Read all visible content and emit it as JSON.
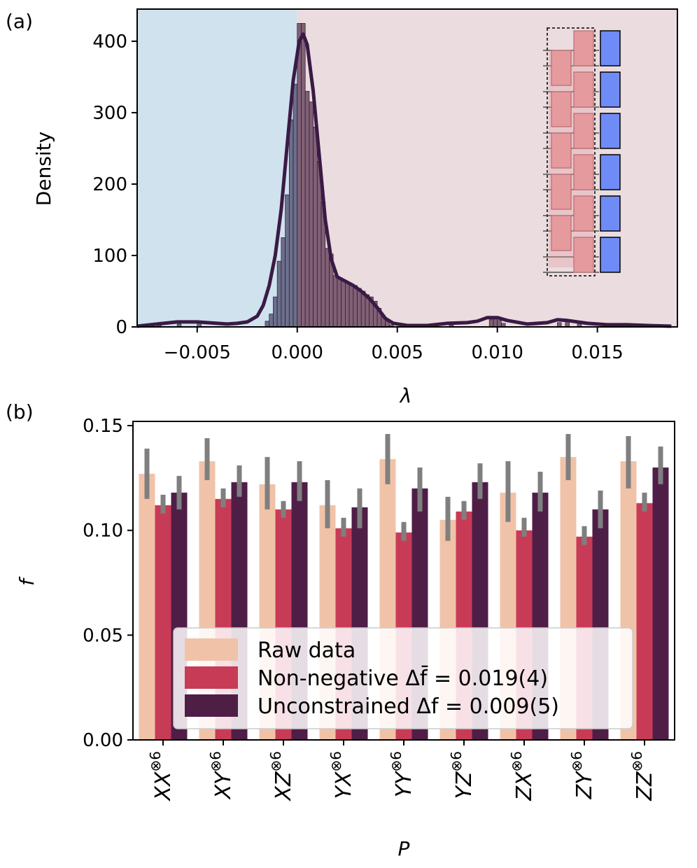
{
  "chart_data": [
    {
      "type": "histogram",
      "panel_label": "(a)",
      "xlabel": "λ",
      "ylabel": "Density",
      "xlim": [
        -0.008,
        0.019
      ],
      "ylim": [
        0,
        445
      ],
      "xticks": [
        -0.005,
        0.0,
        0.005,
        0.01,
        0.015
      ],
      "xtick_labels": [
        "−0.005",
        "0.000",
        "0.005",
        "0.010",
        "0.015"
      ],
      "yticks": [
        0,
        100,
        200,
        300,
        400
      ],
      "ytick_labels": [
        "0",
        "100",
        "200",
        "300",
        "400"
      ],
      "background_regions": [
        {
          "x0": -0.008,
          "x1": 0.0,
          "color": "#cfe2ee"
        },
        {
          "x0": 0.0,
          "x1": 0.019,
          "color": "#eadcdf"
        }
      ],
      "bin_width": 0.0002,
      "bins": [
        {
          "x": -0.0016,
          "y": 8
        },
        {
          "x": -0.0014,
          "y": 18
        },
        {
          "x": -0.0012,
          "y": 42
        },
        {
          "x": -0.001,
          "y": 92
        },
        {
          "x": -0.0008,
          "y": 125
        },
        {
          "x": -0.0006,
          "y": 185
        },
        {
          "x": -0.0004,
          "y": 290
        },
        {
          "x": -0.0002,
          "y": 340
        },
        {
          "x": 0.0,
          "y": 425
        },
        {
          "x": 0.0002,
          "y": 425
        },
        {
          "x": 0.0004,
          "y": 330
        },
        {
          "x": 0.0006,
          "y": 315
        },
        {
          "x": 0.0008,
          "y": 280
        },
        {
          "x": 0.001,
          "y": 232
        },
        {
          "x": 0.0012,
          "y": 175
        },
        {
          "x": 0.0014,
          "y": 110
        },
        {
          "x": 0.0016,
          "y": 102
        },
        {
          "x": 0.0018,
          "y": 72
        },
        {
          "x": 0.002,
          "y": 68
        },
        {
          "x": 0.0022,
          "y": 65
        },
        {
          "x": 0.0024,
          "y": 63
        },
        {
          "x": 0.0026,
          "y": 58
        },
        {
          "x": 0.0028,
          "y": 58
        },
        {
          "x": 0.003,
          "y": 54
        },
        {
          "x": 0.0032,
          "y": 50
        },
        {
          "x": 0.0034,
          "y": 45
        },
        {
          "x": 0.0036,
          "y": 42
        },
        {
          "x": 0.0038,
          "y": 36
        },
        {
          "x": 0.004,
          "y": 26
        },
        {
          "x": 0.0042,
          "y": 16
        },
        {
          "x": 0.0044,
          "y": 8
        },
        {
          "x": 0.0046,
          "y": 3
        },
        {
          "x": -0.007,
          "y": 2
        },
        {
          "x": -0.006,
          "y": 4
        },
        {
          "x": -0.005,
          "y": 5
        },
        {
          "x": 0.0076,
          "y": 3
        },
        {
          "x": 0.0096,
          "y": 10
        },
        {
          "x": 0.0098,
          "y": 12
        },
        {
          "x": 0.01,
          "y": 9
        },
        {
          "x": 0.0102,
          "y": 5
        },
        {
          "x": 0.013,
          "y": 6
        },
        {
          "x": 0.0134,
          "y": 8
        },
        {
          "x": 0.014,
          "y": 5
        },
        {
          "x": 0.0162,
          "y": 3
        }
      ],
      "kde": [
        [
          -0.008,
          1
        ],
        [
          -0.007,
          4
        ],
        [
          -0.006,
          7
        ],
        [
          -0.005,
          7
        ],
        [
          -0.0045,
          6
        ],
        [
          -0.004,
          5
        ],
        [
          -0.0035,
          4
        ],
        [
          -0.003,
          5
        ],
        [
          -0.0025,
          7
        ],
        [
          -0.002,
          15
        ],
        [
          -0.0017,
          30
        ],
        [
          -0.0014,
          58
        ],
        [
          -0.0011,
          100
        ],
        [
          -0.0008,
          165
        ],
        [
          -0.0005,
          255
        ],
        [
          -0.0002,
          345
        ],
        [
          0.0001,
          400
        ],
        [
          0.0003,
          410
        ],
        [
          0.0005,
          395
        ],
        [
          0.0008,
          330
        ],
        [
          0.0011,
          240
        ],
        [
          0.0014,
          150
        ],
        [
          0.0017,
          95
        ],
        [
          0.002,
          70
        ],
        [
          0.0024,
          64
        ],
        [
          0.0028,
          58
        ],
        [
          0.0032,
          50
        ],
        [
          0.0036,
          40
        ],
        [
          0.004,
          27
        ],
        [
          0.0044,
          12
        ],
        [
          0.0048,
          5
        ],
        [
          0.0055,
          2
        ],
        [
          0.0065,
          2
        ],
        [
          0.0075,
          5
        ],
        [
          0.0085,
          6
        ],
        [
          0.009,
          8
        ],
        [
          0.0095,
          13
        ],
        [
          0.01,
          13
        ],
        [
          0.0105,
          9
        ],
        [
          0.0115,
          4
        ],
        [
          0.0125,
          6
        ],
        [
          0.013,
          10
        ],
        [
          0.0135,
          9
        ],
        [
          0.0145,
          5
        ],
        [
          0.0155,
          3
        ],
        [
          0.0165,
          3
        ],
        [
          0.0175,
          2
        ],
        [
          0.0187,
          1
        ]
      ],
      "colors": {
        "bar_neg": "#5b5a7a",
        "bar_pos": "#6d4a63",
        "kde": "#3a1a45"
      },
      "inset": {
        "description_free": true,
        "rows": 6,
        "pink_color": "#e59a9e",
        "blue_color": "#6f8bf5"
      }
    },
    {
      "type": "bar",
      "panel_label": "(b)",
      "xlabel": "P",
      "ylabel": "f",
      "ylim": [
        0,
        0.152
      ],
      "yticks": [
        0,
        0.05,
        0.1,
        0.15
      ],
      "ytick_labels": [
        "0.00",
        "0.05",
        "0.10",
        "0.15"
      ],
      "categories": [
        {
          "base": "XX",
          "sup": "⊗6"
        },
        {
          "base": "XY",
          "sup": "⊗6"
        },
        {
          "base": "XZ",
          "sup": "⊗6"
        },
        {
          "base": "YX",
          "sup": "⊗6"
        },
        {
          "base": "YY",
          "sup": "⊗6"
        },
        {
          "base": "YZ",
          "sup": "⊗6"
        },
        {
          "base": "ZX",
          "sup": "⊗6"
        },
        {
          "base": "ZY",
          "sup": "⊗6"
        },
        {
          "base": "ZZ",
          "sup": "⊗6"
        }
      ],
      "series": [
        {
          "name": "Raw data",
          "color": "#f0c3a8",
          "values": [
            0.127,
            0.133,
            0.122,
            0.112,
            0.134,
            0.105,
            0.118,
            0.135,
            0.133
          ],
          "err_lo": [
            0.115,
            0.124,
            0.11,
            0.101,
            0.122,
            0.095,
            0.104,
            0.124,
            0.12
          ],
          "err_hi": [
            0.139,
            0.144,
            0.135,
            0.124,
            0.146,
            0.116,
            0.133,
            0.146,
            0.145
          ]
        },
        {
          "name": "Non-negative Δf̄ = 0.019(4)",
          "color": "#c83b56",
          "values": [
            0.112,
            0.115,
            0.11,
            0.101,
            0.099,
            0.109,
            0.1,
            0.097,
            0.113
          ],
          "err_lo": [
            0.108,
            0.111,
            0.106,
            0.097,
            0.095,
            0.105,
            0.097,
            0.093,
            0.109
          ],
          "err_hi": [
            0.117,
            0.12,
            0.114,
            0.106,
            0.104,
            0.114,
            0.106,
            0.102,
            0.118
          ]
        },
        {
          "name": "Unconstrained Δf = 0.009(5)",
          "color": "#4f1e47",
          "values": [
            0.118,
            0.123,
            0.123,
            0.111,
            0.12,
            0.123,
            0.118,
            0.11,
            0.13
          ],
          "err_lo": [
            0.11,
            0.116,
            0.114,
            0.101,
            0.109,
            0.115,
            0.109,
            0.101,
            0.122
          ],
          "err_hi": [
            0.126,
            0.131,
            0.133,
            0.12,
            0.13,
            0.132,
            0.128,
            0.119,
            0.14
          ]
        }
      ],
      "legend": {
        "position": "lower-center",
        "entries": [
          "Raw data",
          "Non-negative Δf̄ = 0.019(4)",
          "Unconstrained Δf = 0.009(5)"
        ]
      },
      "errorbar_color": "#7f7f7f"
    }
  ]
}
